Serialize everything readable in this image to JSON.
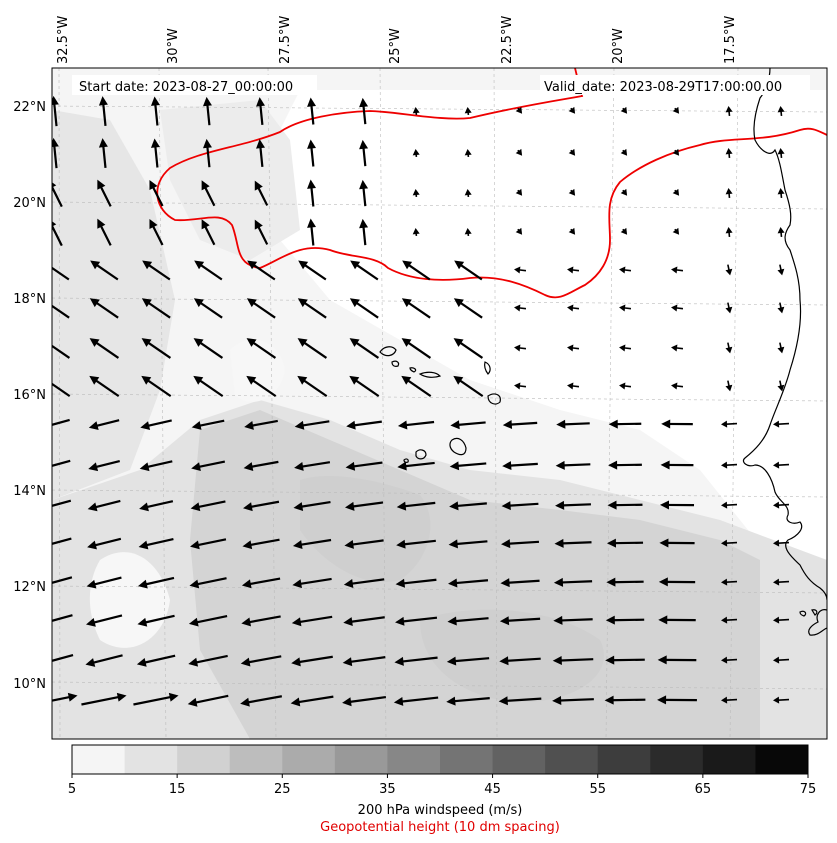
{
  "header": {
    "start_date": "Start date: 2023-08-27_00:00:00",
    "valid_date": "Valid_date: 2023-08-29T17:00:00.00"
  },
  "axes": {
    "longitude_labels": [
      "32.5°W",
      "30°W",
      "27.5°W",
      "25°W",
      "22.5°W",
      "20°W",
      "17.5°W"
    ],
    "latitude_labels": [
      "22°N",
      "20°N",
      "18°N",
      "16°N",
      "14°N",
      "12°N",
      "10°N"
    ]
  },
  "colorbar": {
    "ticks": [
      "5",
      "15",
      "25",
      "35",
      "45",
      "55",
      "65",
      "75"
    ],
    "colors": [
      "#f5f5f5",
      "#e3e3e3",
      "#d1d1d1",
      "#bdbdbd",
      "#ababab",
      "#999999",
      "#878787",
      "#747474",
      "#626262",
      "#505050",
      "#3d3d3d",
      "#2b2b2b",
      "#1a1a1a",
      "#080808"
    ],
    "title": "200 hPa windspeed (m/s)",
    "subtitle": "Geopotential height (10 dm spacing)"
  },
  "colors": {
    "contour": "#ee0000",
    "coastline": "#000000",
    "arrow": "#000000"
  }
}
